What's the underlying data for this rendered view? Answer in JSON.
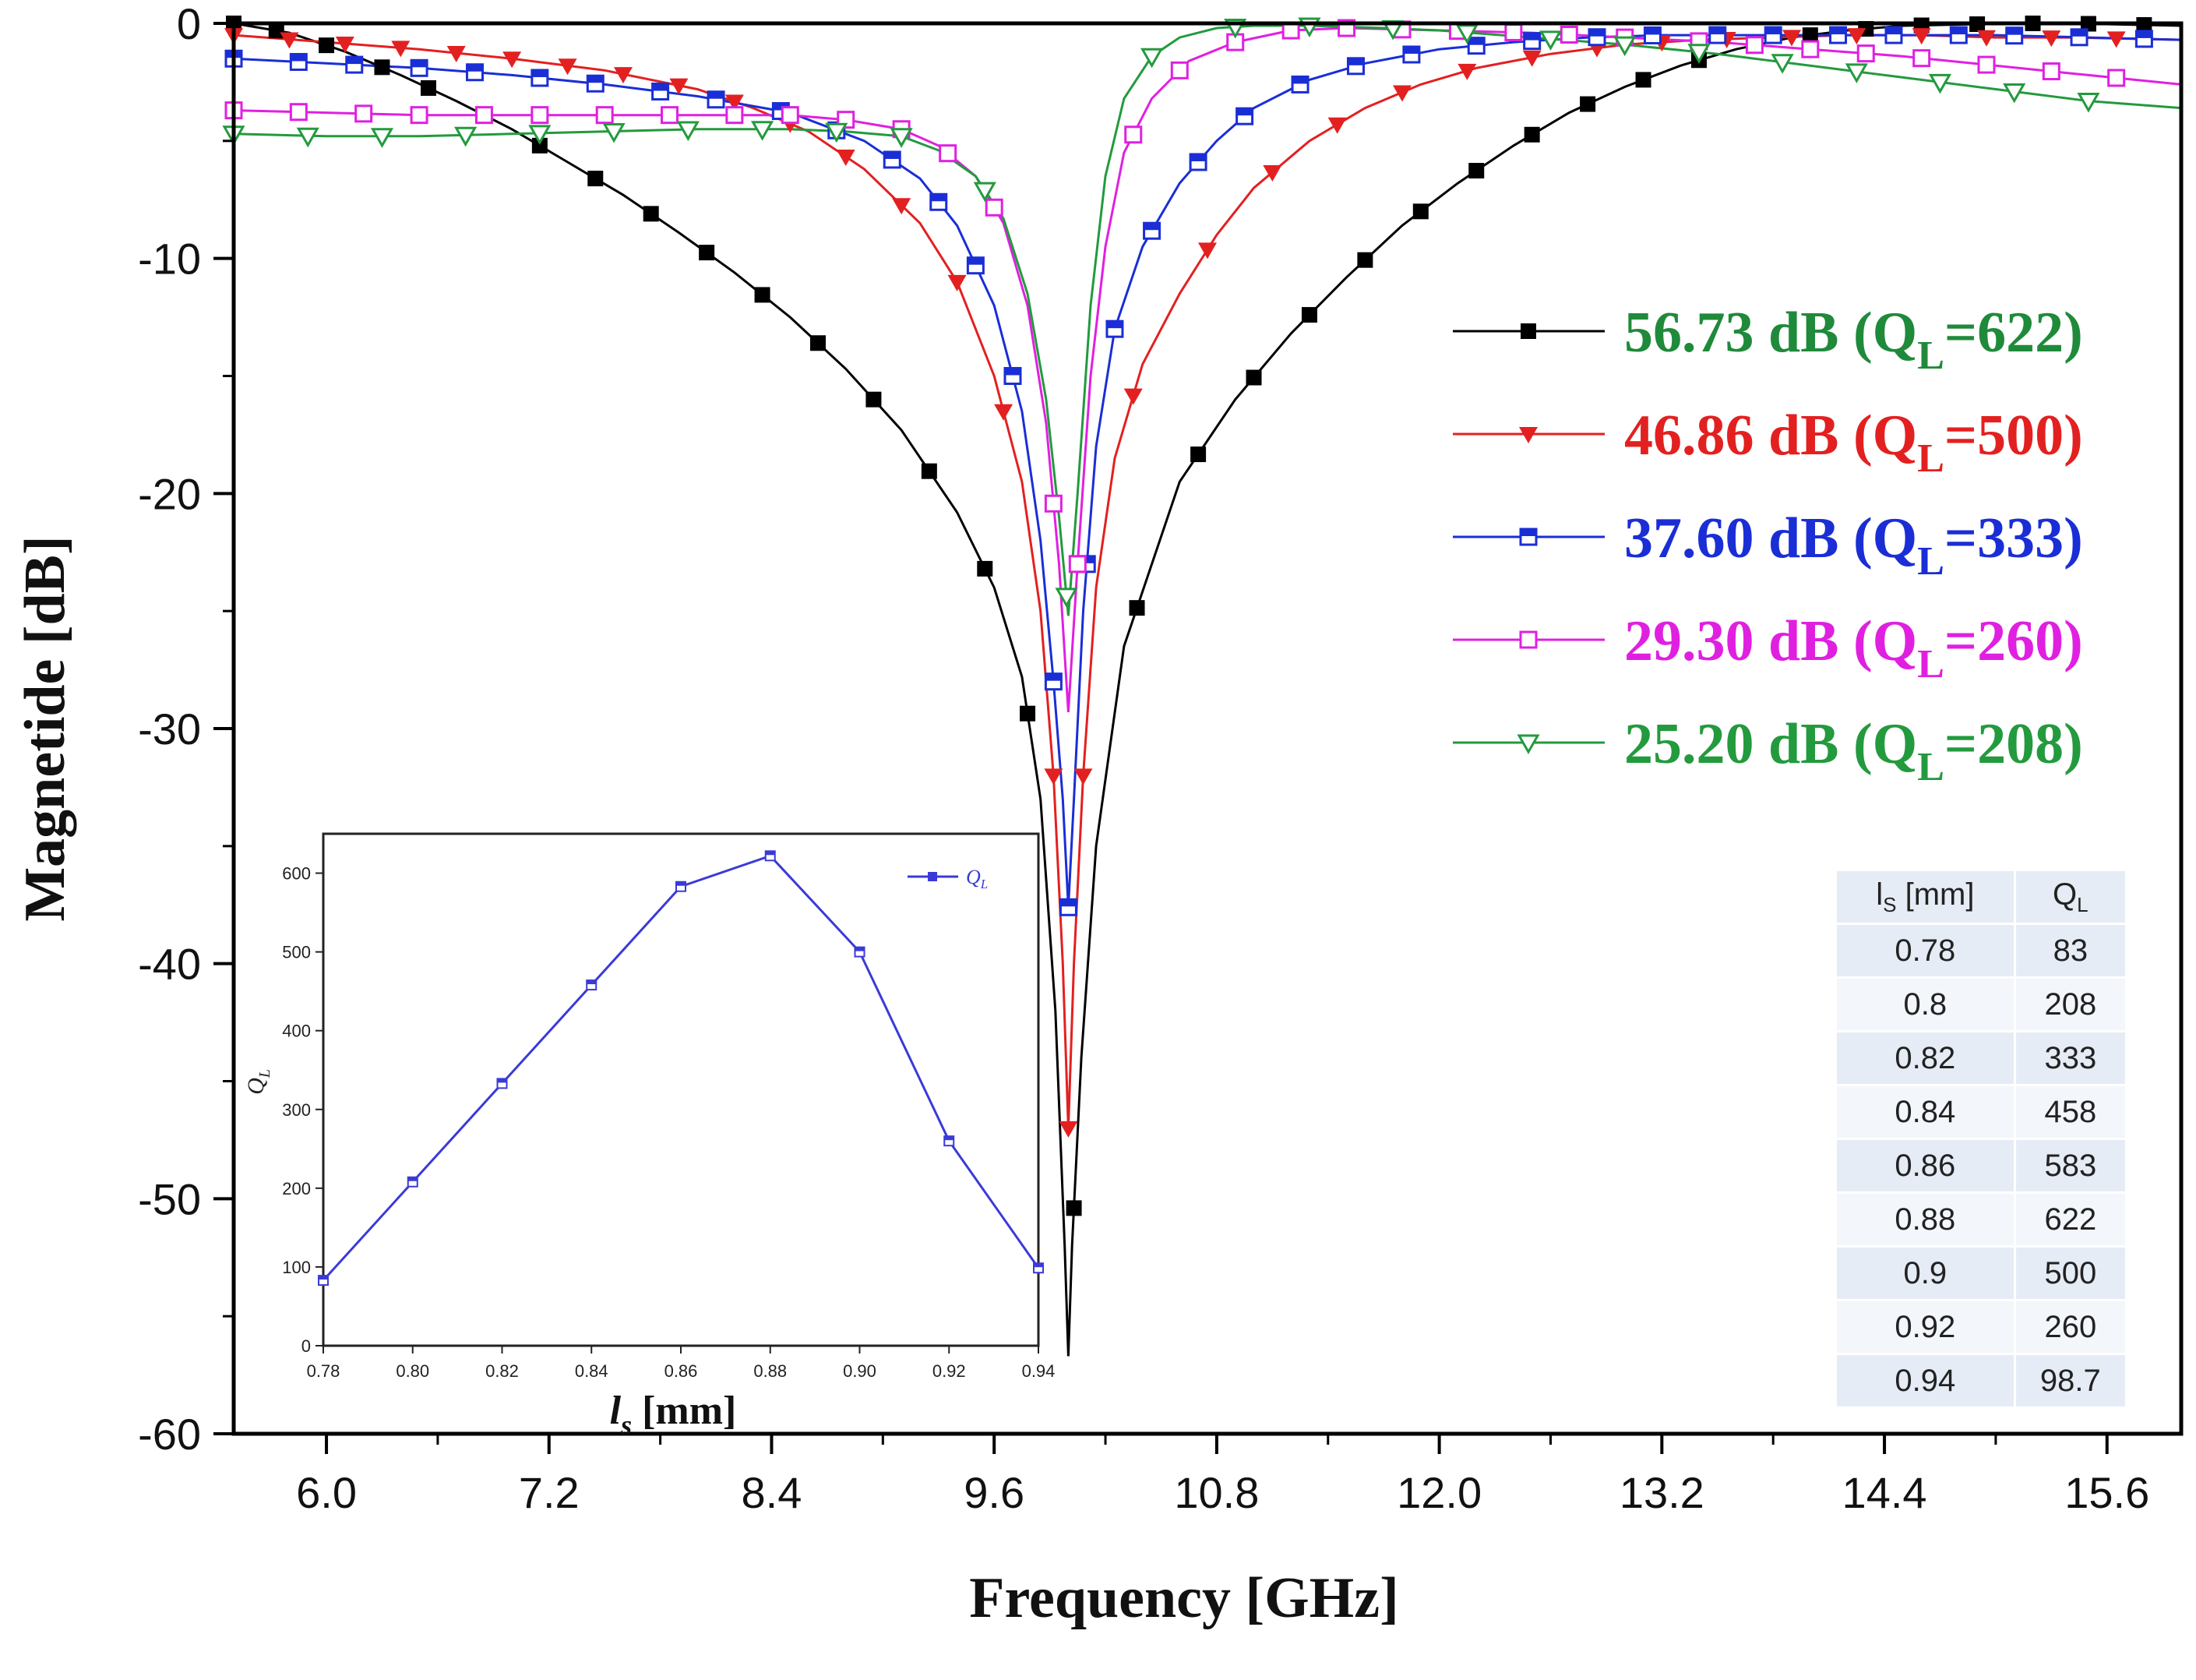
{
  "chart_data": [
    {
      "type": "line",
      "title": "",
      "xlabel": "Frequency [GHz]",
      "ylabel": "Magnetide [dB]",
      "xlim": [
        5.5,
        16.0
      ],
      "ylim": [
        -60,
        0
      ],
      "xticks": [
        "6.0",
        "7.2",
        "8.4",
        "9.6",
        "10.8",
        "12.0",
        "13.2",
        "14.4",
        "15.6"
      ],
      "yticks": [
        "0",
        "-10",
        "-20",
        "-30",
        "-40",
        "-50",
        "-60"
      ],
      "legend_position": "right",
      "series": [
        {
          "name": "56.73 dB (QL=622)",
          "label_main": "56.73 dB (Q",
          "label_sub": "L",
          "label_end": "=622)",
          "color": "#000000",
          "text_color": "#1f8a3a",
          "marker": "filled-square",
          "x": [
            5.5,
            5.8,
            6.1,
            6.4,
            6.7,
            7.0,
            7.3,
            7.6,
            7.9,
            8.2,
            8.5,
            8.8,
            9.1,
            9.4,
            9.6,
            9.75,
            9.85,
            9.93,
            9.98,
            10.0,
            10.02,
            10.07,
            10.15,
            10.3,
            10.6,
            10.9,
            11.2,
            11.5,
            11.8,
            12.1,
            12.4,
            12.7,
            13.0,
            13.3,
            13.6,
            13.9,
            14.2,
            14.5,
            14.8,
            15.1,
            15.4,
            15.7,
            16.0
          ],
          "y": [
            0,
            -0.4,
            -1.2,
            -2.2,
            -3.3,
            -4.5,
            -5.9,
            -7.3,
            -8.9,
            -10.6,
            -12.5,
            -14.7,
            -17.3,
            -20.8,
            -24.0,
            -27.8,
            -33,
            -42,
            -52,
            -56.7,
            -52,
            -44,
            -35,
            -26.5,
            -19.5,
            -16.0,
            -13.2,
            -10.8,
            -8.6,
            -6.8,
            -5.2,
            -3.8,
            -2.7,
            -1.8,
            -1.1,
            -0.6,
            -0.3,
            -0.1,
            -0.05,
            0,
            0,
            -0.05,
            -0.1
          ],
          "marker_x": [
            5.5,
            5.73,
            6.0,
            6.3,
            6.55,
            6.85,
            7.15,
            7.45,
            7.75,
            8.05,
            8.35,
            8.65,
            8.95,
            9.25,
            9.55,
            9.78,
            10.03,
            10.37,
            10.7,
            11.0,
            11.3,
            11.6,
            11.9,
            12.2,
            12.5,
            12.8,
            13.1,
            13.4,
            13.7,
            14.0,
            14.3,
            14.6,
            14.9,
            15.2,
            15.5,
            15.8
          ]
        },
        {
          "name": "46.86 dB (QL=500)",
          "label_main": "46.86 dB (Q",
          "label_sub": "L",
          "label_end": "=500)",
          "color": "#e32020",
          "text_color": "#e32020",
          "marker": "filled-triangle-down",
          "x": [
            5.5,
            6.0,
            6.5,
            7.0,
            7.5,
            8.0,
            8.3,
            8.6,
            8.9,
            9.2,
            9.4,
            9.6,
            9.75,
            9.85,
            9.92,
            9.97,
            10.0,
            10.03,
            10.08,
            10.15,
            10.25,
            10.4,
            10.6,
            10.8,
            11.0,
            11.3,
            11.6,
            11.9,
            12.2,
            12.6,
            13.0,
            13.4,
            13.8,
            14.2,
            14.6,
            15.0,
            15.4,
            16.0
          ],
          "y": [
            -0.5,
            -0.8,
            -1.1,
            -1.5,
            -2.0,
            -2.8,
            -3.6,
            -4.6,
            -6.2,
            -8.5,
            -11.0,
            -15.0,
            -19.5,
            -25,
            -32,
            -40,
            -47,
            -40,
            -32,
            -24,
            -18.5,
            -14.5,
            -11.5,
            -9.0,
            -7.0,
            -5.0,
            -3.6,
            -2.6,
            -1.9,
            -1.3,
            -0.9,
            -0.7,
            -0.6,
            -0.5,
            -0.5,
            -0.6,
            -0.6,
            -0.7
          ],
          "marker_x": [
            5.5,
            5.8,
            6.1,
            6.4,
            6.7,
            7.0,
            7.3,
            7.6,
            7.9,
            8.2,
            8.5,
            8.8,
            9.1,
            9.4,
            9.65,
            9.92,
            10.0,
            10.08,
            10.35,
            10.75,
            11.1,
            11.45,
            11.8,
            12.15,
            12.5,
            12.85,
            13.2,
            13.55,
            13.9,
            14.25,
            14.6,
            14.95,
            15.3,
            15.65
          ]
        },
        {
          "name": "37.60 dB (QL=333)",
          "label_main": "37.60 dB (Q",
          "label_sub": "L",
          "label_end": "=333)",
          "color": "#1a2ed6",
          "text_color": "#1a2ed6",
          "marker": "half-square",
          "x": [
            5.5,
            6.0,
            6.5,
            7.0,
            7.5,
            8.0,
            8.5,
            8.9,
            9.2,
            9.4,
            9.6,
            9.75,
            9.85,
            9.92,
            9.97,
            10.0,
            10.03,
            10.08,
            10.15,
            10.25,
            10.4,
            10.6,
            10.8,
            11.0,
            11.3,
            11.6,
            12.0,
            12.4,
            12.8,
            13.2,
            13.6,
            14.0,
            14.5,
            15.0,
            15.5,
            16.0
          ],
          "y": [
            -1.5,
            -1.7,
            -1.9,
            -2.2,
            -2.6,
            -3.1,
            -3.8,
            -5.0,
            -6.6,
            -8.6,
            -12.0,
            -16.5,
            -22,
            -28,
            -33,
            -37.6,
            -33,
            -25,
            -18,
            -13,
            -9.5,
            -6.8,
            -5.0,
            -3.6,
            -2.4,
            -1.7,
            -1.1,
            -0.8,
            -0.6,
            -0.5,
            -0.5,
            -0.5,
            -0.5,
            -0.5,
            -0.6,
            -0.7
          ],
          "marker_x": [
            5.5,
            5.85,
            6.15,
            6.5,
            6.8,
            7.15,
            7.45,
            7.8,
            8.1,
            8.45,
            8.75,
            9.05,
            9.3,
            9.5,
            9.7,
            9.92,
            10.0,
            10.1,
            10.25,
            10.45,
            10.7,
            10.95,
            11.25,
            11.55,
            11.85,
            12.2,
            12.5,
            12.85,
            13.15,
            13.5,
            13.8,
            14.15,
            14.45,
            14.8,
            15.1,
            15.45,
            15.8
          ]
        },
        {
          "name": "29.30 dB (QL=260)",
          "label_main": "29.30 dB (Q",
          "label_sub": "L",
          "label_end": "=260)",
          "color": "#e020e0",
          "text_color": "#e020e0",
          "marker": "open-square",
          "x": [
            5.5,
            6.0,
            6.5,
            7.0,
            7.5,
            8.0,
            8.5,
            8.8,
            9.1,
            9.3,
            9.5,
            9.65,
            9.78,
            9.88,
            9.95,
            10.0,
            10.05,
            10.12,
            10.2,
            10.3,
            10.45,
            10.65,
            10.9,
            11.2,
            11.5,
            12.0,
            12.5,
            13.0,
            13.5,
            14.0,
            14.5,
            15.0,
            15.5,
            16.0
          ],
          "y": [
            -3.7,
            -3.8,
            -3.9,
            -3.9,
            -3.9,
            -3.9,
            -3.9,
            -4.1,
            -4.5,
            -5.2,
            -6.5,
            -8.5,
            -12,
            -17,
            -23,
            -29.3,
            -23,
            -15,
            -9.5,
            -5.5,
            -3.2,
            -1.6,
            -0.8,
            -0.3,
            -0.2,
            -0.3,
            -0.4,
            -0.6,
            -0.8,
            -1.1,
            -1.4,
            -1.8,
            -2.2,
            -2.6
          ],
          "marker_x": [
            5.5,
            5.85,
            6.2,
            6.5,
            6.85,
            7.15,
            7.5,
            7.85,
            8.2,
            8.5,
            8.8,
            9.1,
            9.35,
            9.6,
            9.92,
            10.05,
            10.35,
            10.6,
            10.9,
            11.2,
            11.5,
            11.8,
            12.1,
            12.4,
            12.7,
            13.0,
            13.4,
            13.7,
            14.0,
            14.3,
            14.6,
            14.95,
            15.3,
            15.65
          ]
        },
        {
          "name": "25.20 dB (QL=208)",
          "label_main": "25.20 dB (Q",
          "label_sub": "L",
          "label_end": "=208)",
          "color": "#239a3e",
          "text_color": "#239a3e",
          "marker": "open-triangle-down",
          "x": [
            5.5,
            6.0,
            6.5,
            7.0,
            7.5,
            8.0,
            8.5,
            8.8,
            9.1,
            9.3,
            9.5,
            9.65,
            9.78,
            9.88,
            9.95,
            10.0,
            10.05,
            10.12,
            10.2,
            10.3,
            10.45,
            10.6,
            10.8,
            11.0,
            11.3,
            11.7,
            12.0,
            12.5,
            13.0,
            13.5,
            14.0,
            14.5,
            15.0,
            15.5,
            16.0
          ],
          "y": [
            -4.7,
            -4.8,
            -4.8,
            -4.7,
            -4.6,
            -4.5,
            -4.5,
            -4.6,
            -4.8,
            -5.4,
            -6.5,
            -8.3,
            -11.5,
            -16,
            -21,
            -25.2,
            -20,
            -12,
            -6.5,
            -3.2,
            -1.4,
            -0.6,
            -0.2,
            -0.1,
            -0.1,
            -0.2,
            -0.3,
            -0.6,
            -0.9,
            -1.3,
            -1.8,
            -2.3,
            -2.8,
            -3.3,
            -3.6
          ],
          "marker_x": [
            5.5,
            5.9,
            6.3,
            6.75,
            7.15,
            7.55,
            7.95,
            8.35,
            8.75,
            9.1,
            9.55,
            9.99,
            10.45,
            10.9,
            11.3,
            11.75,
            12.15,
            12.6,
            13.0,
            13.4,
            13.85,
            14.25,
            14.7,
            15.1,
            15.5
          ]
        }
      ]
    },
    {
      "type": "line",
      "title": "",
      "xlabel_main": "l",
      "xlabel_sub": "s",
      "xlabel_end": " [mm]",
      "ylabel": "QL",
      "ylabel_main": "Q",
      "ylabel_sub": "L",
      "xlim": [
        0.78,
        0.94
      ],
      "ylim": [
        0,
        650
      ],
      "xticks": [
        "0.78",
        "0.80",
        "0.82",
        "0.84",
        "0.86",
        "0.88",
        "0.90",
        "0.92",
        "0.94"
      ],
      "yticks": [
        "0",
        "100",
        "200",
        "300",
        "400",
        "500",
        "600"
      ],
      "legend": "QL",
      "legend_main": "Q",
      "legend_sub": "L",
      "color": "#3a3ad8",
      "x": [
        0.78,
        0.8,
        0.82,
        0.84,
        0.86,
        0.88,
        0.9,
        0.92,
        0.94
      ],
      "y": [
        83,
        208,
        333,
        458,
        583,
        622,
        500,
        260,
        98.7
      ]
    },
    {
      "type": "table",
      "headers_main": [
        "l",
        "Q"
      ],
      "headers_sub": [
        "S",
        "L"
      ],
      "headers_end": [
        " [mm]",
        ""
      ],
      "rows": [
        [
          "0.78",
          "83"
        ],
        [
          "0.8",
          "208"
        ],
        [
          "0.82",
          "333"
        ],
        [
          "0.84",
          "458"
        ],
        [
          "0.86",
          "583"
        ],
        [
          "0.88",
          "622"
        ],
        [
          "0.9",
          "500"
        ],
        [
          "0.92",
          "260"
        ],
        [
          "0.94",
          "98.7"
        ]
      ]
    }
  ]
}
